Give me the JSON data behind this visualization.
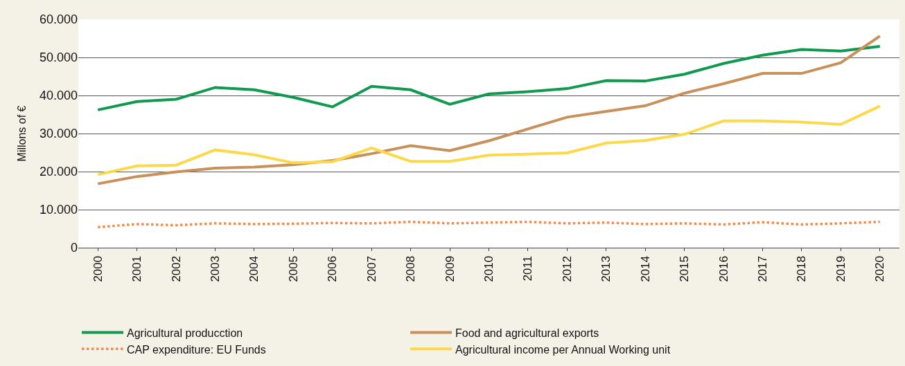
{
  "chart_data": {
    "type": "line",
    "ylabel": "Millons of €",
    "categories": [
      "2000",
      "2001",
      "2002",
      "2003",
      "2004",
      "2005",
      "2006",
      "2007",
      "2008",
      "2009",
      "2010",
      "2011",
      "2012",
      "2013",
      "2014",
      "2015",
      "2016",
      "2017",
      "2018",
      "2019",
      "2020"
    ],
    "ylim": [
      0,
      60000
    ],
    "yticks": [
      0,
      {
        "value": 10000,
        "label": "10.000"
      },
      {
        "value": 20000,
        "label": "20.000"
      },
      {
        "value": 30000,
        "label": "30.000"
      },
      {
        "value": 40000,
        "label": "40.000"
      },
      {
        "value": 50000,
        "label": "50.000"
      },
      {
        "value": 60000,
        "label": "60.000"
      }
    ],
    "grid": "y",
    "legend": "bottom",
    "marker": "none",
    "series": [
      {
        "name": "Agricultural producction",
        "color": "#0f9a4f",
        "line_style": "solid",
        "values": [
          36200,
          38400,
          39000,
          42100,
          41500,
          39500,
          37000,
          42400,
          41500,
          37700,
          40400,
          41000,
          41800,
          43900,
          43800,
          45600,
          48400,
          50600,
          52100,
          51700,
          52900
        ]
      },
      {
        "name": "Food and agricultural exports",
        "color": "#c8905a",
        "line_style": "solid",
        "values": [
          16800,
          18700,
          19900,
          20900,
          21200,
          21800,
          22900,
          24700,
          26800,
          25500,
          28100,
          31200,
          34300,
          35800,
          37300,
          40600,
          43100,
          45800,
          45800,
          48600,
          55600
        ]
      },
      {
        "name": "CAP expenditure: EU Funds",
        "color": "#f58a4b",
        "line_style": "dotted",
        "values": [
          5400,
          6200,
          5900,
          6400,
          6200,
          6300,
          6500,
          6400,
          6800,
          6400,
          6600,
          6800,
          6400,
          6600,
          6200,
          6400,
          6100,
          6700,
          6100,
          6400,
          6800
        ]
      },
      {
        "name": "Agricultural income per Annual Working unit",
        "color": "#fcd94a",
        "line_style": "solid",
        "values": [
          19200,
          21500,
          21700,
          25700,
          24400,
          22300,
          22600,
          26200,
          22700,
          22700,
          24300,
          24600,
          24900,
          27500,
          28200,
          29800,
          33300,
          33300,
          33000,
          32400,
          37200
        ]
      }
    ]
  }
}
